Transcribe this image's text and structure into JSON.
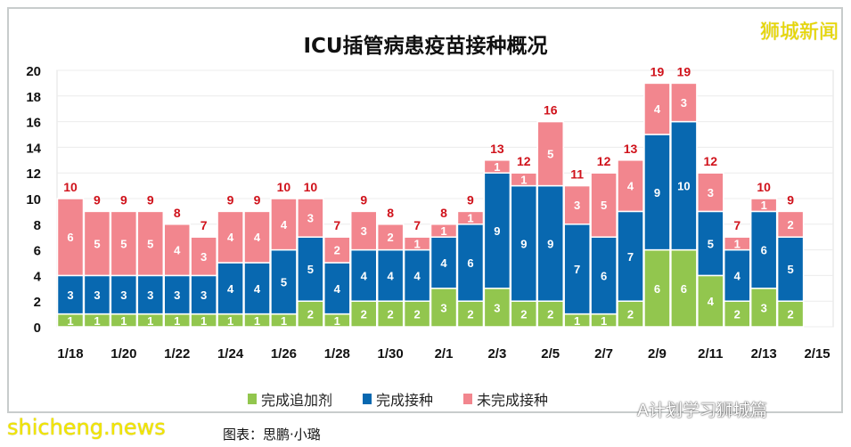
{
  "brand": "狮城新闻",
  "site_watermark": "shicheng.news",
  "wechat_watermark": "A计划学习狮城篇",
  "credit": "图表：思鹏·小璐",
  "chart_data": {
    "type": "bar",
    "stacked": true,
    "title": "ICU插管病患疫苗接种概况",
    "xlabel": "",
    "ylabel": "",
    "ylim": [
      0,
      20
    ],
    "yticks": [
      0,
      2,
      4,
      6,
      8,
      10,
      12,
      14,
      16,
      18,
      20
    ],
    "grid": true,
    "legend_position": "bottom",
    "categories": [
      "1/18",
      "1/19",
      "1/20",
      "1/21",
      "1/22",
      "1/23",
      "1/24",
      "1/25",
      "1/26",
      "1/27",
      "1/28",
      "1/29",
      "1/30",
      "1/31",
      "2/1",
      "2/2",
      "2/3",
      "2/4",
      "2/5",
      "2/6",
      "2/7",
      "2/8",
      "2/9",
      "2/10",
      "2/11",
      "2/12",
      "2/13",
      "2/14"
    ],
    "xtick_labels": [
      "1/18",
      "1/20",
      "1/22",
      "1/24",
      "1/26",
      "1/28",
      "1/30",
      "2/1",
      "2/3",
      "2/5",
      "2/7",
      "2/9",
      "2/11",
      "2/13",
      "2/15"
    ],
    "series": [
      {
        "name": "完成追加剂",
        "color": "#92c64e",
        "values": [
          1,
          1,
          1,
          1,
          1,
          1,
          1,
          1,
          1,
          2,
          1,
          2,
          2,
          2,
          3,
          2,
          3,
          2,
          2,
          1,
          1,
          2,
          6,
          6,
          4,
          2,
          3,
          2
        ]
      },
      {
        "name": "完成接种",
        "color": "#0868b0",
        "values": [
          3,
          3,
          3,
          3,
          3,
          3,
          4,
          4,
          5,
          5,
          4,
          4,
          4,
          4,
          4,
          6,
          9,
          9,
          9,
          7,
          6,
          7,
          9,
          10,
          5,
          4,
          6,
          5
        ]
      },
      {
        "name": "未完成接种",
        "color": "#f2868e",
        "values": [
          6,
          5,
          5,
          5,
          4,
          3,
          4,
          4,
          4,
          3,
          2,
          3,
          2,
          1,
          1,
          1,
          1,
          1,
          5,
          3,
          5,
          4,
          4,
          3,
          3,
          1,
          1,
          2
        ]
      }
    ],
    "totals": [
      10,
      9,
      9,
      9,
      8,
      7,
      9,
      9,
      10,
      10,
      7,
      9,
      8,
      7,
      8,
      9,
      13,
      12,
      16,
      11,
      12,
      13,
      19,
      19,
      12,
      7,
      10,
      9
    ],
    "total_label_color": "#d0121b"
  }
}
